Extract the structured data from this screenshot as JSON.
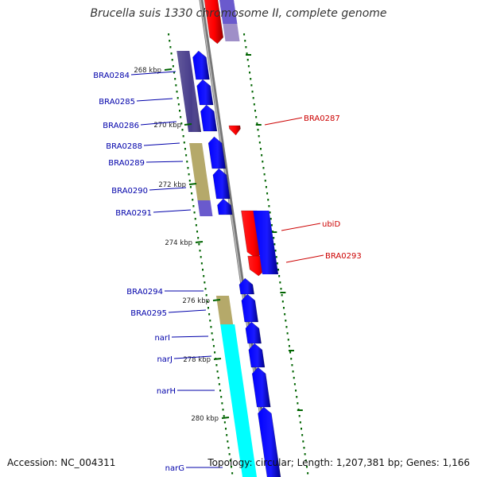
{
  "title": "Brucella suis 1330 chromosome II, complete genome",
  "accession": "Accession: NC_004311",
  "topology": "Topology: circular; Length: 1,207,381 bp; Genes: 1,166",
  "colors": {
    "backbone": "#888888",
    "forward_cds": "#0000ff",
    "reverse_cds": "#ff0000",
    "cog_purple": "#483d8b",
    "cog_khaki": "#b5a96a",
    "cog_slate": "#6a5acd",
    "cog_lavender": "#9f8fc8",
    "cog_cyan": "#00ffff",
    "tick": "#006400",
    "forward_label": "#0000aa",
    "reverse_label": "#cc0000"
  },
  "ticks": [
    "268 kbp",
    "270 kbp",
    "272 kbp",
    "274 kbp",
    "276 kbp",
    "278 kbp",
    "280 kbp"
  ],
  "forward_genes": [
    "BRA0284",
    "BRA0285",
    "BRA0286",
    "BRA0288",
    "BRA0289",
    "BRA0290",
    "BRA0291",
    "BRA0294",
    "BRA0295",
    "narI",
    "narJ",
    "narH",
    "narG"
  ],
  "reverse_genes": [
    "BRA0287",
    "ubiD",
    "BRA0293"
  ]
}
